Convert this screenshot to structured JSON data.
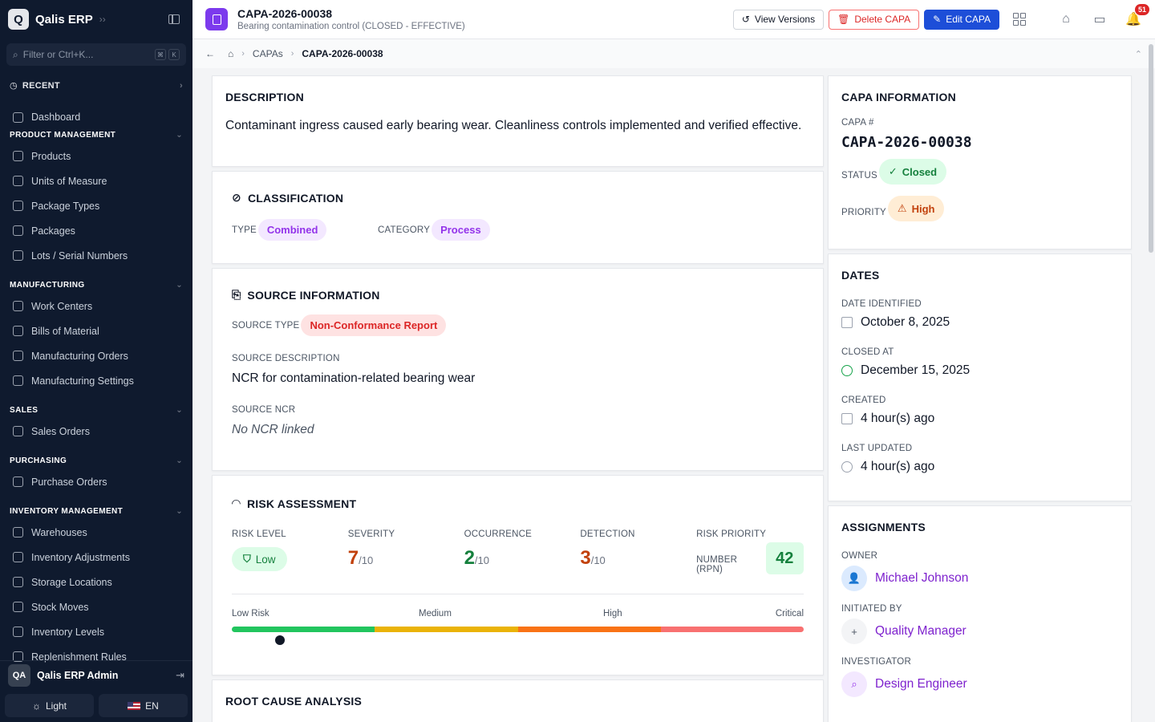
{
  "sidebar": {
    "brand": "Qalis ERP",
    "filter_placeholder": "Filter or Ctrl+K...",
    "kbd": [
      "⌘",
      "K"
    ],
    "recent": "RECENT",
    "dashboard": "Dashboard",
    "sections": [
      {
        "title": "PRODUCT MANAGEMENT",
        "items": [
          "Products",
          "Units of Measure",
          "Package Types",
          "Packages",
          "Lots / Serial Numbers"
        ]
      },
      {
        "title": "MANUFACTURING",
        "items": [
          "Work Centers",
          "Bills of Material",
          "Manufacturing Orders",
          "Manufacturing Settings"
        ]
      },
      {
        "title": "SALES",
        "items": [
          "Sales Orders"
        ]
      },
      {
        "title": "PURCHASING",
        "items": [
          "Purchase Orders"
        ]
      },
      {
        "title": "INVENTORY MANAGEMENT",
        "items": [
          "Warehouses",
          "Inventory Adjustments",
          "Storage Locations",
          "Stock Moves",
          "Inventory Levels",
          "Replenishment Rules"
        ]
      }
    ],
    "user": {
      "initials": "QA",
      "name": "Qalis ERP Admin"
    },
    "theme_label": "Light",
    "language_label": "EN"
  },
  "header": {
    "title": "CAPA-2026-00038",
    "subtitle": "Bearing contamination control (CLOSED - EFFECTIVE)",
    "view_versions": "View Versions",
    "delete": "Delete CAPA",
    "edit": "Edit CAPA",
    "notification_count": "51"
  },
  "breadcrumb": {
    "items": [
      "CAPAs",
      "CAPA-2026-00038"
    ]
  },
  "description": {
    "title": "DESCRIPTION",
    "text": "Contaminant ingress caused early bearing wear. Cleanliness controls implemented and verified effective."
  },
  "classification": {
    "title": "CLASSIFICATION",
    "type_label": "TYPE",
    "type_value": "Combined",
    "category_label": "CATEGORY",
    "category_value": "Process"
  },
  "source": {
    "title": "SOURCE INFORMATION",
    "type_label": "SOURCE TYPE",
    "type_value": "Non-Conformance Report",
    "desc_label": "SOURCE DESCRIPTION",
    "desc_value": "NCR for contamination-related bearing wear",
    "ncr_label": "SOURCE NCR",
    "ncr_value": "No NCR linked"
  },
  "risk": {
    "title": "RISK ASSESSMENT",
    "level_label": "RISK LEVEL",
    "level_value": "Low",
    "severity_label": "SEVERITY",
    "severity": "7",
    "occurrence_label": "OCCURRENCE",
    "occurrence": "2",
    "detection_label": "DETECTION",
    "detection": "3",
    "out_of": "/10",
    "rpn_label_1": "RISK PRIORITY",
    "rpn_label_2": "NUMBER (RPN)",
    "rpn": "42",
    "rpn_fraction": 0.042,
    "scale": [
      "Low Risk",
      "Medium",
      "High",
      "Critical"
    ],
    "colors": {
      "low": "#22c55e",
      "medium": "#eab308",
      "high": "#f97316",
      "critical": "#f87171"
    }
  },
  "root_cause": {
    "title": "ROOT CAUSE ANALYSIS"
  },
  "info": {
    "title": "CAPA INFORMATION",
    "capa_label": "CAPA #",
    "capa_value": "CAPA-2026-00038",
    "status_label": "STATUS",
    "status_value": "Closed",
    "priority_label": "PRIORITY",
    "priority_value": "High"
  },
  "dates": {
    "title": "DATES",
    "identified_label": "DATE IDENTIFIED",
    "identified": "October 8, 2025",
    "closed_label": "CLOSED AT",
    "closed": "December 15, 2025",
    "created_label": "CREATED",
    "created": "4 hour(s) ago",
    "updated_label": "LAST UPDATED",
    "updated": "4 hour(s) ago"
  },
  "assignments": {
    "title": "ASSIGNMENTS",
    "owner_label": "OWNER",
    "owner": "Michael Johnson",
    "initiated_label": "INITIATED BY",
    "initiated": "Quality Manager",
    "investigator_label": "INVESTIGATOR",
    "investigator": "Design Engineer"
  }
}
